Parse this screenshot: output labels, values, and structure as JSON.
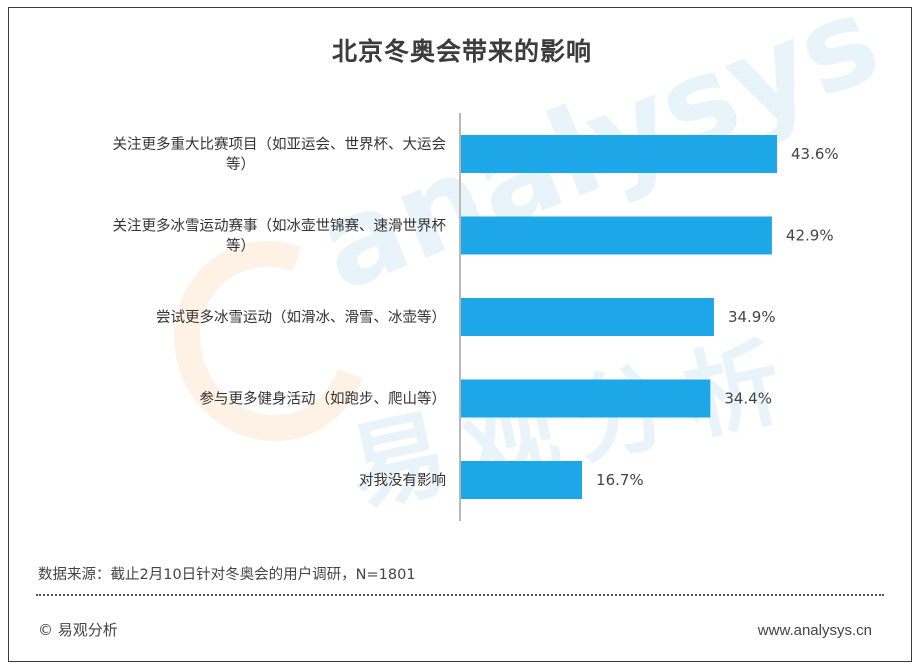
{
  "chart_data": {
    "type": "bar",
    "orientation": "horizontal",
    "title": "北京冬奥会带来的影响",
    "categories": [
      [
        "关注更多重大比赛项目（如亚运会、世界杯、大运会",
        "等）"
      ],
      [
        "关注更多冰雪运动赛事（如冰壶世锦赛、速滑世界杯",
        "等）"
      ],
      [
        "尝试更多冰雪运动（如滑冰、滑雪、冰壶等）"
      ],
      [
        "参与更多健身活动（如跑步、爬山等）"
      ],
      [
        "对我没有影响"
      ]
    ],
    "values": [
      43.6,
      42.9,
      34.9,
      34.4,
      16.7
    ],
    "value_labels": [
      "43.6%",
      "42.9%",
      "34.9%",
      "34.4%",
      "16.7%"
    ],
    "unit": "%",
    "xlim": [
      0,
      60
    ],
    "bar_color": "#1ea7e8",
    "grid": false,
    "legend": "none"
  },
  "footer": {
    "source": "数据来源：截止2月10日针对冬奥会的用户调研，N=1801",
    "copyright": "© 易观分析",
    "website": "www.analysys.cn"
  },
  "watermark": {
    "english": "analysys",
    "chinese": "易观分析"
  }
}
